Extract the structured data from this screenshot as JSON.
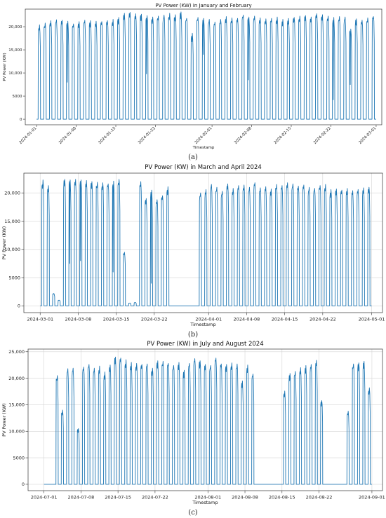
{
  "chart_data": [
    {
      "type": "line",
      "label": "(a)",
      "title": "PV Power (KW) in January and February",
      "xlabel": "Timestamp",
      "ylabel": "PV Power (KW)",
      "x_ticks": [
        "2024-01-01",
        "2024-01-08",
        "2024-01-15",
        "2024-01-22",
        "2024-02-01",
        "2024-02-08",
        "2024-02-15",
        "2024-02-22",
        "2024-03-01"
      ],
      "y_ticks": [
        "0",
        "5000",
        "10,000",
        "15,000",
        "20,000"
      ],
      "xlim": [
        "2023-12-30",
        "2024-03-02"
      ],
      "ylim": [
        -1200,
        23800
      ],
      "grid": false,
      "color": "#1f77b4",
      "series": [
        {
          "days": [
            "2024-01-01",
            "2024-01-02",
            "2024-01-03",
            "2024-01-04",
            "2024-01-05",
            "2024-01-06",
            "2024-01-07",
            "2024-01-08",
            "2024-01-09",
            "2024-01-10",
            "2024-01-11",
            "2024-01-12",
            "2024-01-13",
            "2024-01-14",
            "2024-01-15",
            "2024-01-16",
            "2024-01-17",
            "2024-01-18",
            "2024-01-19",
            "2024-01-20",
            "2024-01-21",
            "2024-01-22",
            "2024-01-23",
            "2024-01-24",
            "2024-01-25",
            "2024-01-26",
            "2024-01-27",
            "2024-01-28",
            "2024-01-29",
            "2024-01-30",
            "2024-01-31",
            "2024-02-01",
            "2024-02-02",
            "2024-02-03",
            "2024-02-04",
            "2024-02-05",
            "2024-02-06",
            "2024-02-07",
            "2024-02-08",
            "2024-02-09",
            "2024-02-10",
            "2024-02-11",
            "2024-02-12",
            "2024-02-13",
            "2024-02-14",
            "2024-02-15",
            "2024-02-16",
            "2024-02-17",
            "2024-02-18",
            "2024-02-19",
            "2024-02-20",
            "2024-02-21",
            "2024-02-22",
            "2024-02-23",
            "2024-02-24",
            "2024-02-25",
            "2024-02-26",
            "2024-02-27",
            "2024-02-28",
            "2024-02-29"
          ],
          "daily_peak_kw": [
            20400,
            20800,
            21300,
            21500,
            21400,
            21200,
            20600,
            21100,
            21400,
            21300,
            21200,
            21100,
            21300,
            21600,
            22000,
            22900,
            23100,
            22800,
            22700,
            22400,
            22100,
            22300,
            22500,
            22900,
            22600,
            23200,
            21800,
            18600,
            22000,
            21800,
            21600,
            21000,
            21600,
            22200,
            21900,
            21800,
            22500,
            22100,
            22300,
            21900,
            21700,
            21800,
            22100,
            21600,
            21800,
            22000,
            22300,
            22400,
            22100,
            22800,
            22600,
            22300,
            22000,
            22200,
            22100,
            19500,
            21700,
            21400,
            21900,
            22200
          ],
          "daily_low_dip_kw": [
            null,
            null,
            null,
            null,
            null,
            8000,
            null,
            null,
            null,
            null,
            null,
            null,
            null,
            null,
            null,
            null,
            null,
            null,
            null,
            9800,
            null,
            null,
            null,
            null,
            null,
            null,
            null,
            17500,
            null,
            14000,
            null,
            null,
            null,
            null,
            null,
            null,
            null,
            8500,
            null,
            null,
            null,
            null,
            null,
            null,
            null,
            null,
            null,
            null,
            null,
            null,
            null,
            null,
            4200,
            null,
            null,
            7500,
            null,
            null,
            null,
            null
          ]
        }
      ]
    },
    {
      "type": "line",
      "label": "(b)",
      "title": "PV Power (KW) in March and April 2024",
      "xlabel": "Timestamp",
      "ylabel": "PV Power (KW)",
      "x_ticks": [
        "2024-03-01",
        "2024-03-08",
        "2024-03-15",
        "2024-03-22",
        "2024-04-01",
        "2024-04-08",
        "2024-04-15",
        "2024-04-22",
        "2024-05-01"
      ],
      "y_ticks": [
        "0",
        "5000",
        "10,000",
        "15,000",
        "20,000"
      ],
      "xlim": [
        "2024-02-27",
        "2024-05-03"
      ],
      "ylim": [
        -1200,
        23500
      ],
      "grid": true,
      "color": "#1f77b4",
      "series": [
        {
          "days": [
            "2024-03-01",
            "2024-03-02",
            "2024-03-03",
            "2024-03-04",
            "2024-03-05",
            "2024-03-06",
            "2024-03-07",
            "2024-03-08",
            "2024-03-09",
            "2024-03-10",
            "2024-03-11",
            "2024-03-12",
            "2024-03-13",
            "2024-03-14",
            "2024-03-15",
            "2024-03-16",
            "2024-03-17",
            "2024-03-18",
            "2024-03-19",
            "2024-03-20",
            "2024-03-21",
            "2024-03-22",
            "2024-03-23",
            "2024-03-24",
            "2024-03-25",
            "2024-03-26",
            "2024-03-27",
            "2024-03-28",
            "2024-03-29",
            "2024-03-30",
            "2024-03-31",
            "2024-04-01",
            "2024-04-02",
            "2024-04-03",
            "2024-04-04",
            "2024-04-05",
            "2024-04-06",
            "2024-04-07",
            "2024-04-08",
            "2024-04-09",
            "2024-04-10",
            "2024-04-11",
            "2024-04-12",
            "2024-04-13",
            "2024-04-14",
            "2024-04-15",
            "2024-04-16",
            "2024-04-17",
            "2024-04-18",
            "2024-04-19",
            "2024-04-20",
            "2024-04-21",
            "2024-04-22",
            "2024-04-23",
            "2024-04-24",
            "2024-04-25",
            "2024-04-26",
            "2024-04-27",
            "2024-04-28",
            "2024-04-29",
            "2024-04-30"
          ],
          "daily_peak_kw": [
            22300,
            21300,
            2200,
            1000,
            22400,
            22300,
            22400,
            22300,
            22200,
            22000,
            21900,
            21800,
            21600,
            22100,
            22400,
            9500,
            500,
            600,
            22000,
            19000,
            20500,
            18800,
            19500,
            21100,
            0,
            0,
            0,
            0,
            0,
            20000,
            20600,
            21500,
            21000,
            20300,
            21600,
            20800,
            21300,
            21400,
            21000,
            21800,
            20900,
            21100,
            20700,
            21500,
            21300,
            21800,
            21600,
            21200,
            21400,
            21000,
            20800,
            21300,
            21500,
            20600,
            20700,
            20500,
            20800,
            20400,
            20600,
            20900,
            21000
          ],
          "daily_low_dip_kw": [
            null,
            null,
            null,
            null,
            null,
            7500,
            null,
            8000,
            null,
            null,
            null,
            null,
            null,
            6000,
            null,
            null,
            null,
            null,
            null,
            null,
            4000,
            null,
            null,
            null,
            null,
            null,
            null,
            null,
            null,
            null,
            null,
            null,
            null,
            null,
            null,
            null,
            null,
            null,
            null,
            null,
            null,
            null,
            null,
            null,
            null,
            null,
            null,
            null,
            null,
            null,
            null,
            null,
            null,
            null,
            null,
            null,
            null,
            null,
            null,
            null,
            null
          ]
        }
      ]
    },
    {
      "type": "line",
      "label": "(c)",
      "title": "PV Power (KW) in July and August 2024",
      "xlabel": "Timestamp",
      "ylabel": "PV Power (KW)",
      "x_ticks": [
        "2024-07-01",
        "2024-07-08",
        "2024-07-15",
        "2024-07-22",
        "2024-08-01",
        "2024-08-08",
        "2024-08-15",
        "2024-08-22",
        "2024-09-01"
      ],
      "y_ticks": [
        "0",
        "5000",
        "10,000",
        "15,000",
        "20,000",
        "25,000"
      ],
      "xlim": [
        "2024-06-28",
        "2024-09-03"
      ],
      "ylim": [
        -1200,
        25500
      ],
      "grid": true,
      "color": "#1f77b4",
      "series": [
        {
          "days": [
            "2024-07-01",
            "2024-07-02",
            "2024-07-03",
            "2024-07-04",
            "2024-07-05",
            "2024-07-06",
            "2024-07-07",
            "2024-07-08",
            "2024-07-09",
            "2024-07-10",
            "2024-07-11",
            "2024-07-12",
            "2024-07-13",
            "2024-07-14",
            "2024-07-15",
            "2024-07-16",
            "2024-07-17",
            "2024-07-18",
            "2024-07-19",
            "2024-07-20",
            "2024-07-21",
            "2024-07-22",
            "2024-07-23",
            "2024-07-24",
            "2024-07-25",
            "2024-07-26",
            "2024-07-27",
            "2024-07-28",
            "2024-07-29",
            "2024-07-30",
            "2024-07-31",
            "2024-08-01",
            "2024-08-02",
            "2024-08-03",
            "2024-08-04",
            "2024-08-05",
            "2024-08-06",
            "2024-08-07",
            "2024-08-08",
            "2024-08-09",
            "2024-08-10",
            "2024-08-11",
            "2024-08-12",
            "2024-08-13",
            "2024-08-14",
            "2024-08-15",
            "2024-08-16",
            "2024-08-17",
            "2024-08-18",
            "2024-08-19",
            "2024-08-20",
            "2024-08-21",
            "2024-08-22",
            "2024-08-23",
            "2024-08-24",
            "2024-08-25",
            "2024-08-26",
            "2024-08-27",
            "2024-08-28",
            "2024-08-29",
            "2024-08-30",
            "2024-08-31"
          ],
          "daily_peak_kw": [
            0,
            0,
            20500,
            14000,
            21800,
            21900,
            10500,
            22100,
            22600,
            21900,
            22300,
            21200,
            22500,
            24000,
            23800,
            23500,
            23000,
            22800,
            22600,
            22700,
            21900,
            23300,
            23200,
            22800,
            22400,
            23000,
            21500,
            22800,
            23700,
            23300,
            22600,
            22400,
            23800,
            22700,
            22600,
            22900,
            22700,
            19500,
            22500,
            20800,
            0,
            0,
            0,
            0,
            0,
            17600,
            20900,
            21300,
            22000,
            22400,
            22600,
            23400,
            15800,
            0,
            0,
            0,
            0,
            13800,
            22700,
            22900,
            23200,
            18200
          ],
          "daily_low_dip_kw": [
            null,
            null,
            null,
            null,
            null,
            null,
            null,
            null,
            null,
            null,
            null,
            null,
            null,
            null,
            null,
            null,
            null,
            null,
            null,
            null,
            null,
            null,
            null,
            null,
            null,
            null,
            null,
            null,
            null,
            null,
            null,
            null,
            null,
            null,
            null,
            null,
            null,
            null,
            null,
            null,
            null,
            null,
            null,
            null,
            null,
            null,
            null,
            null,
            null,
            null,
            null,
            null,
            null,
            null,
            null,
            null,
            null,
            null,
            null,
            null,
            null,
            null
          ]
        }
      ]
    }
  ]
}
